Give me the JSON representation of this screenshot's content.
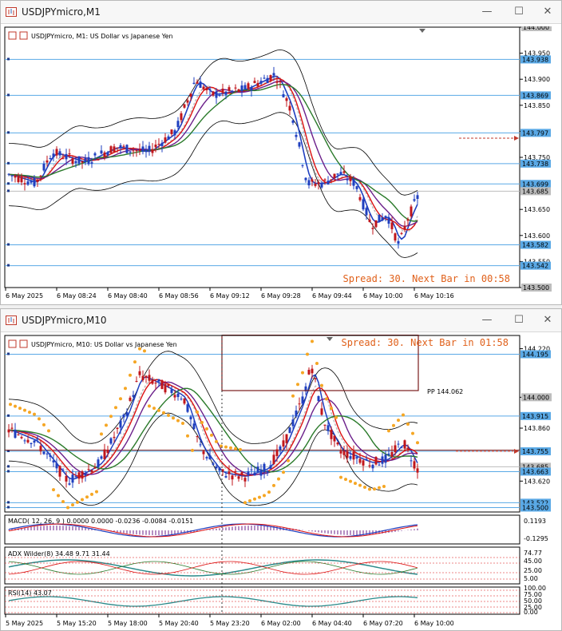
{
  "window1": {
    "title": "USDJPYmicro,M1",
    "chart_label": "USDJPYmicro, M1:  US Dollar vs Japanese Yen",
    "spread_text": "Spread: 30. Next Bar in 00:58",
    "price_axis": [
      "144.000",
      "143.950",
      "143.900",
      "143.850",
      "143.800",
      "143.750",
      "143.650",
      "143.600",
      "143.550",
      "143.500"
    ],
    "price_tags": [
      {
        "text": "143.938",
        "color": "#5aa9e6"
      },
      {
        "text": "143.869",
        "color": "#5aa9e6"
      },
      {
        "text": "143.797",
        "color": "#5aa9e6"
      },
      {
        "text": "143.738",
        "color": "#5aa9e6"
      },
      {
        "text": "143.699",
        "color": "#5aa9e6"
      },
      {
        "text": "143.685",
        "color": "#bdbdbd"
      },
      {
        "text": "143.582",
        "color": "#5aa9e6"
      },
      {
        "text": "143.542",
        "color": "#5aa9e6"
      }
    ],
    "time_axis": [
      "6 May 2025",
      "6 May 08:24",
      "6 May 08:40",
      "6 May 08:56",
      "6 May 09:12",
      "6 May 09:28",
      "6 May 09:44",
      "6 May 10:00",
      "6 May 10:16"
    ]
  },
  "window2": {
    "title": "USDJPYmicro,M10",
    "chart_label": "USDJPYmicro, M10:  US Dollar vs Japanese Yen",
    "spread_text": "Spread: 30. Next Bar in 01:58",
    "pp_label": "PP 144.062",
    "price_axis": [
      "144.220",
      "144.000",
      "143.860",
      "143.620"
    ],
    "price_tags": [
      {
        "text": "144.195",
        "color": "#5aa9e6"
      },
      {
        "text": "143.915",
        "color": "#5aa9e6"
      },
      {
        "text": "143.755",
        "color": "#5aa9e6"
      },
      {
        "text": "143.685",
        "color": "#bdbdbd"
      },
      {
        "text": "143.663",
        "color": "#5aa9e6"
      },
      {
        "text": "143.522",
        "color": "#5aa9e6"
      },
      {
        "text": "143.500",
        "color": "#5aa9e6"
      }
    ],
    "macd_label": "MACD( 12, 26, 9 ) 0.0000 0.0000 -0.0236 -0.0084 -0.0151",
    "macd_axis": [
      "0.1193",
      "-0.1295"
    ],
    "adx_label": "ADX Wilder(8) 34.48 9.71 31.44",
    "adx_axis": [
      "74.77",
      "45.00",
      "25.00",
      "5.00"
    ],
    "rsi_label": "RSI(14) 43.07",
    "rsi_axis": [
      "100.00",
      "75.00",
      "50.00",
      "25.00",
      "0.00"
    ],
    "time_axis": [
      "5 May 2025",
      "5 May 15:20",
      "5 May 18:00",
      "5 May 20:40",
      "5 May 23:20",
      "6 May 02:00",
      "6 May 04:40",
      "6 May 07:20",
      "6 May 10:00"
    ]
  }
}
